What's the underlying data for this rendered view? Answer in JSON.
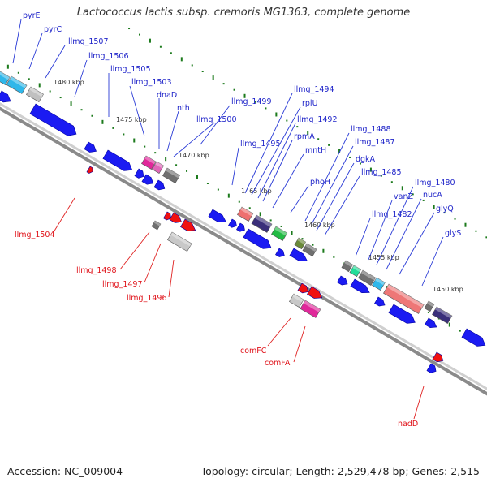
{
  "title": "Lactococcus lactis subsp. cremoris MG1363, complete genome",
  "accession": "Accession: NC_009004",
  "summary": "Topology: circular; Length: 2,529,478 bp; Genes: 2,515",
  "colors": {
    "label_forward": "#1f24c9",
    "label_reverse": "#e0141b",
    "leader_forward": "#2a3bd6",
    "leader_reverse": "#e02020",
    "backbone": "#8a8a8a",
    "ruler_dots": "#1c7a1c",
    "cds_forward": "#1b1bf2",
    "cds_reverse": "#f01010"
  },
  "scale_ticks": [
    "1480 kbp",
    "1475 kbp",
    "1470 kbp",
    "1465 kbp",
    "1460 kbp",
    "1455 kbp",
    "1450 kbp"
  ],
  "forward_genes": [
    "pyrE",
    "pyrC",
    "llmg_1507",
    "llmg_1506",
    "llmg_1505",
    "llmg_1503",
    "dnaD",
    "nth",
    "llmg_1500",
    "llmg_1499",
    "llmg_1495",
    "llmg_1494",
    "rplU",
    "llmg_1492",
    "rpmA",
    "mntH",
    "phoH",
    "llmg_1488",
    "llmg_1487",
    "dgkA",
    "llmg_1485",
    "llmg_1482",
    "vanZ",
    "llmg_1480",
    "nucA",
    "glyQ",
    "glyS"
  ],
  "reverse_genes": [
    "llmg_1504",
    "llmg_1498",
    "llmg_1497",
    "llmg_1496",
    "comFC",
    "comFA",
    "nadD"
  ]
}
